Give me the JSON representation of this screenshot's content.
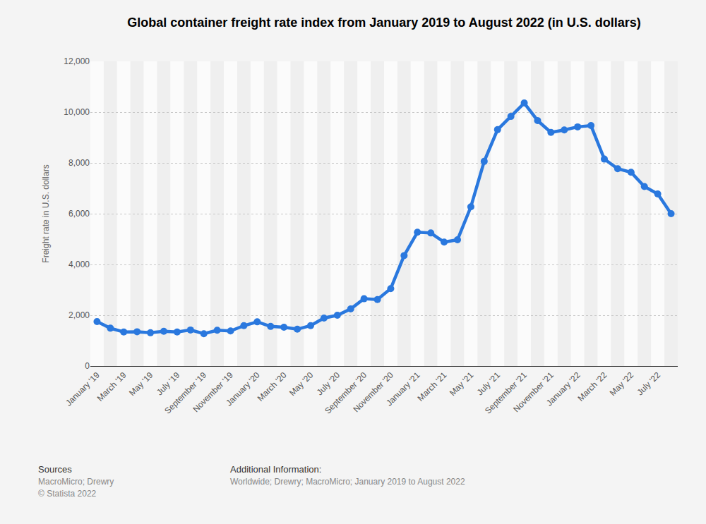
{
  "chart_data": {
    "type": "line",
    "title": "Global container freight rate index from January 2019 to August 2022 (in U.S. dollars)",
    "y_label": "Freight rate in U.S. dollars",
    "categories": [
      "January '19",
      null,
      "March '19",
      null,
      "May '19",
      null,
      "July '19",
      null,
      "September '19",
      null,
      "November '19",
      null,
      "January '20",
      null,
      "March '20",
      null,
      "May '20",
      null,
      "July '20",
      null,
      "September '20",
      null,
      "November '20",
      null,
      "January '21",
      null,
      "March '21",
      null,
      "May '21",
      null,
      "July '21",
      null,
      "September '21",
      null,
      "November '21",
      null,
      "January '22",
      null,
      "March '22",
      null,
      "May '22",
      null,
      "July '22",
      null
    ],
    "values": [
      1750,
      1490,
      1340,
      1350,
      1310,
      1370,
      1340,
      1420,
      1270,
      1410,
      1380,
      1590,
      1740,
      1560,
      1530,
      1450,
      1590,
      1890,
      2000,
      2250,
      2650,
      2620,
      3050,
      4350,
      5270,
      5240,
      4880,
      4970,
      6270,
      8060,
      9310,
      9830,
      10360,
      9670,
      9200,
      9300,
      9420,
      9470,
      8150,
      7770,
      7630,
      7070,
      6780,
      6000
    ],
    "color": "#2a78de",
    "marker": "circle",
    "ylim": [
      0,
      12000
    ],
    "yticks": [
      0,
      {
        "value": 2000,
        "label": "2,000"
      },
      {
        "value": 4000,
        "label": "4,000"
      },
      {
        "value": 6000,
        "label": "6,000"
      },
      {
        "value": 8000,
        "label": "8,000"
      },
      {
        "value": 10000,
        "label": "10,000"
      },
      {
        "value": 12000,
        "label": "12,000"
      }
    ],
    "grid": true,
    "annotations": [
      "Sources",
      "MacroMicro; Drewry",
      "© Statista 2022",
      "Additional Information:",
      "Worldwide; Drewry; MacroMicro; January 2019 to August 2022"
    ]
  }
}
